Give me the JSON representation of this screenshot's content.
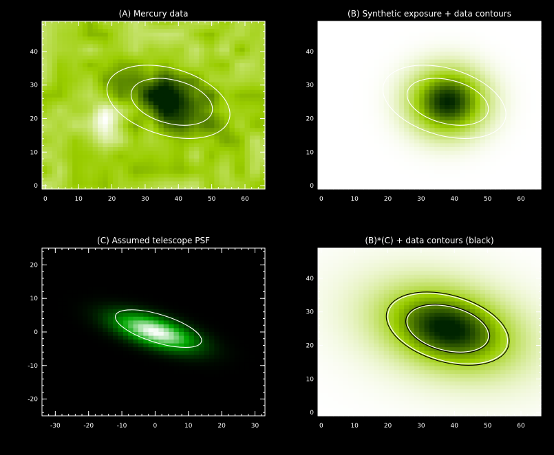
{
  "chart_data": [
    {
      "type": "heatmap",
      "title": "(A) Mercury data",
      "xlabel": "",
      "ylabel": "",
      "xlim": [
        -1,
        66
      ],
      "ylim": [
        -1,
        49
      ],
      "xticks": [
        0,
        10,
        20,
        30,
        40,
        50,
        60
      ],
      "yticks": [
        0,
        10,
        20,
        30,
        40
      ],
      "grid": false,
      "colormap": [
        "#ffffff",
        "#9acd00",
        "#002400"
      ],
      "image": {
        "kind": "noisy_background_with_dark_blob",
        "background_level": 0.42,
        "noise_amplitude": 0.16,
        "bright_spot": {
          "center": [
            18,
            19
          ],
          "sigma": 3.5,
          "amplitude": -0.35
        },
        "dark_blob": {
          "center": [
            38,
            25
          ],
          "sigma_major": 9.5,
          "sigma_minor": 5.5,
          "angle_deg": -20,
          "amplitude": 0.6
        }
      },
      "contours": [
        {
          "color": "#ffffff",
          "center": [
            37,
            25
          ],
          "semi_major": 19,
          "semi_minor": 10,
          "angle_deg": -16
        },
        {
          "color": "#ffffff",
          "center": [
            38,
            25
          ],
          "semi_major": 12.5,
          "semi_minor": 6.5,
          "angle_deg": -14
        }
      ]
    },
    {
      "type": "heatmap",
      "title": "(B) Synthetic exposure + data contours",
      "xlabel": "",
      "ylabel": "",
      "xlim": [
        -1,
        66
      ],
      "ylim": [
        -1,
        49
      ],
      "xticks": [
        0,
        10,
        20,
        30,
        40,
        50,
        60
      ],
      "yticks": [
        0,
        10,
        20,
        30,
        40
      ],
      "grid": false,
      "colormap": [
        "#ffffff",
        "#9acd00",
        "#002400"
      ],
      "image": {
        "kind": "gaussian_blob",
        "background_level": 0.0,
        "blobs": [
          {
            "center": [
              38,
              25
            ],
            "sigma_major": 7.5,
            "sigma_minor": 6.5,
            "angle_deg": 0,
            "amplitude": 1.0
          }
        ]
      },
      "contours": [
        {
          "color": "#ffffff",
          "center": [
            37,
            25
          ],
          "semi_major": 19,
          "semi_minor": 10,
          "angle_deg": -16
        },
        {
          "color": "#ffffff",
          "center": [
            38,
            25
          ],
          "semi_major": 12.5,
          "semi_minor": 6.5,
          "angle_deg": -14
        }
      ]
    },
    {
      "type": "heatmap",
      "title": "(C) Assumed telescope PSF",
      "xlabel": "",
      "ylabel": "",
      "xlim": [
        -34,
        33
      ],
      "ylim": [
        -25,
        25
      ],
      "xticks": [
        -30,
        -20,
        -10,
        0,
        10,
        20,
        30
      ],
      "yticks": [
        -20,
        -10,
        0,
        10,
        20
      ],
      "grid": false,
      "colormap": [
        "#000000",
        "#00a800",
        "#ffffff"
      ],
      "image": {
        "kind": "gaussian_blob",
        "background_level": 0.0,
        "blobs": [
          {
            "center": [
              0,
              0
            ],
            "sigma_major": 8.5,
            "sigma_minor": 2.8,
            "angle_deg": -17,
            "amplitude": 1.0
          }
        ]
      },
      "contours": [
        {
          "color": "#ffffff",
          "center": [
            1,
            1
          ],
          "semi_major": 13.5,
          "semi_minor": 4.2,
          "angle_deg": -17
        }
      ]
    },
    {
      "type": "heatmap",
      "title": "(B)*(C) + data contours (black)",
      "xlabel": "",
      "ylabel": "",
      "xlim": [
        -1,
        66
      ],
      "ylim": [
        -1,
        49
      ],
      "xticks": [
        0,
        10,
        20,
        30,
        40,
        50,
        60
      ],
      "yticks": [
        0,
        10,
        20,
        30,
        40
      ],
      "grid": false,
      "colormap": [
        "#ffffff",
        "#9acd00",
        "#002400"
      ],
      "image": {
        "kind": "gaussian_blob",
        "background_level": 0.0,
        "blobs": [
          {
            "center": [
              38,
              25
            ],
            "sigma_major": 12,
            "sigma_minor": 7,
            "angle_deg": -14,
            "amplitude": 0.85
          },
          {
            "center": [
              38,
              25
            ],
            "sigma_major": 22,
            "sigma_minor": 12,
            "angle_deg": -14,
            "amplitude": 0.2
          }
        ]
      },
      "contours": [
        {
          "color": "#000000",
          "center": [
            38,
            25
          ],
          "semi_major": 19,
          "semi_minor": 10,
          "angle_deg": -16
        },
        {
          "color": "#ffffff",
          "center": [
            38,
            25
          ],
          "semi_major": 18.5,
          "semi_minor": 9.6,
          "angle_deg": -16
        },
        {
          "color": "#ffffff",
          "center": [
            38,
            25
          ],
          "semi_major": 12.5,
          "semi_minor": 6.5,
          "angle_deg": -14
        },
        {
          "color": "#000000",
          "center": [
            38,
            25
          ],
          "semi_major": 12.9,
          "semi_minor": 6.8,
          "angle_deg": -14
        }
      ]
    }
  ]
}
